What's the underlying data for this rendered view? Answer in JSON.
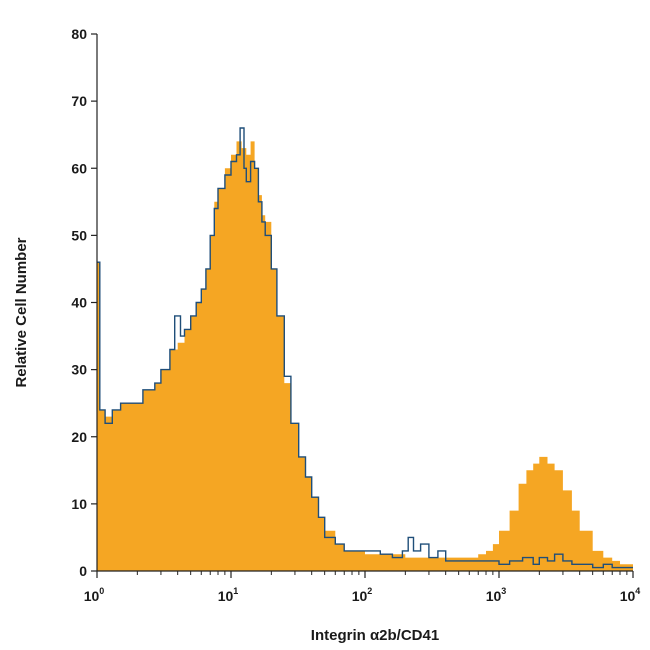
{
  "chart_data": {
    "type": "area",
    "xlabel": "Integrin α2b/CD41",
    "ylabel": "Relative Cell Number",
    "x_scale": "log",
    "xlim": [
      1,
      10000
    ],
    "ylim": [
      0,
      80
    ],
    "x_ticks": [
      {
        "base": "10",
        "exp": "0",
        "value": 1
      },
      {
        "base": "10",
        "exp": "1",
        "value": 10
      },
      {
        "base": "10",
        "exp": "2",
        "value": 100
      },
      {
        "base": "10",
        "exp": "3",
        "value": 1000
      },
      {
        "base": "10",
        "exp": "4",
        "value": 10000
      }
    ],
    "y_ticks": [
      "0",
      "10",
      "20",
      "30",
      "40",
      "50",
      "60",
      "70",
      "80"
    ],
    "grid": false,
    "legend": "none",
    "series": [
      {
        "style": "filled",
        "color": "#F5A623",
        "x": [
          1.0,
          1.05,
          1.15,
          1.3,
          1.5,
          1.8,
          2.2,
          2.7,
          3.0,
          3.5,
          4.0,
          4.5,
          5.0,
          5.5,
          6.0,
          6.5,
          7.0,
          7.5,
          8.0,
          9.0,
          10.0,
          11.0,
          12.0,
          13.0,
          14.0,
          15.0,
          16.0,
          17.0,
          18.0,
          20.0,
          22.0,
          25.0,
          28.0,
          32.0,
          36.0,
          40.0,
          45.0,
          50.0,
          60.0,
          70.0,
          80.0,
          100.0,
          130.0,
          160.0,
          200.0,
          260.0,
          300.0,
          400.0,
          500.0,
          600.0,
          700.0,
          800.0,
          900.0,
          1000.0,
          1200.0,
          1400.0,
          1600.0,
          1800.0,
          2000.0,
          2300.0,
          2600.0,
          3000.0,
          3500.0,
          4000.0,
          5000.0,
          6000.0,
          7000.0,
          8000.0,
          9000.0,
          10000.0
        ],
        "values": [
          46,
          24,
          23,
          24,
          25,
          25,
          27,
          28,
          30,
          33,
          34,
          36,
          38,
          40,
          42,
          45,
          50,
          55,
          57,
          60,
          62,
          64,
          63,
          62,
          64,
          60,
          56,
          53,
          52,
          45,
          38,
          28,
          22,
          17,
          14,
          11,
          8,
          6,
          4,
          3,
          3,
          2.5,
          2.5,
          2.5,
          2,
          2,
          2,
          2,
          2,
          2,
          2.5,
          3,
          4,
          6,
          9,
          13,
          15,
          16,
          17,
          16,
          15,
          12,
          9,
          6,
          3,
          2,
          1.5,
          1,
          1,
          0.5
        ]
      },
      {
        "style": "outline",
        "color": "#1f4e79",
        "x": [
          1.0,
          1.05,
          1.15,
          1.3,
          1.5,
          1.8,
          2.2,
          2.7,
          3.0,
          3.5,
          3.8,
          4.2,
          4.5,
          5.0,
          5.5,
          6.0,
          6.5,
          7.0,
          7.5,
          8.0,
          9.0,
          10.0,
          11.0,
          11.7,
          12.5,
          13.0,
          14.0,
          15.0,
          16.0,
          17.0,
          18.0,
          20.0,
          22.0,
          25.0,
          28.0,
          32.0,
          36.0,
          40.0,
          45.0,
          50.0,
          60.0,
          70.0,
          80.0,
          100.0,
          130.0,
          160.0,
          190.0,
          210.0,
          230.0,
          260.0,
          300.0,
          350.0,
          400.0,
          500.0,
          700.0,
          1000.0,
          1200.0,
          1500.0,
          1800.0,
          2000.0,
          2300.0,
          2600.0,
          3000.0,
          3500.0,
          4000.0,
          5000.0,
          6000.0,
          7000.0,
          8000.0,
          10000.0
        ],
        "values": [
          46,
          24,
          22,
          24,
          25,
          25,
          27,
          28,
          30,
          33,
          38,
          35,
          36,
          38,
          40,
          42,
          45,
          50,
          54,
          57,
          59,
          61,
          62,
          66,
          60,
          58,
          61,
          60,
          55,
          52,
          50,
          45,
          38,
          29,
          22,
          17,
          14,
          11,
          8,
          5,
          4,
          3,
          3,
          3,
          2.5,
          2,
          3,
          5,
          3,
          4,
          2,
          3,
          1.5,
          1.5,
          1.5,
          1,
          1.5,
          2,
          1,
          2,
          1.5,
          2.5,
          1.5,
          1,
          1,
          0.5,
          1,
          0.5,
          0.5,
          0.5
        ]
      }
    ]
  }
}
